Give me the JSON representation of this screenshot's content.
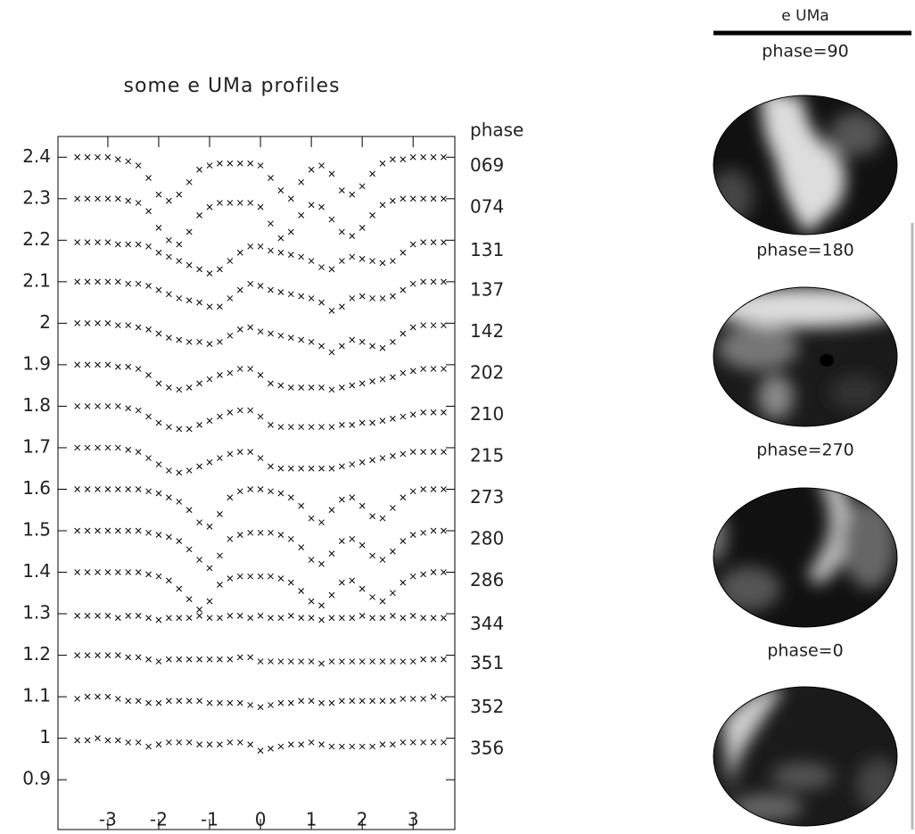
{
  "chart_data": {
    "type": "scatter",
    "title": "some e UMa profiles",
    "legend_title": "phase",
    "color": "#000000",
    "x": [
      -3.6,
      -3.4,
      -3.2,
      -3.0,
      -2.8,
      -2.6,
      -2.4,
      -2.2,
      -2.0,
      -1.8,
      -1.6,
      -1.4,
      -1.2,
      -1.0,
      -0.8,
      -0.6,
      -0.4,
      -0.2,
      0,
      0.2,
      0.4,
      0.6,
      0.8,
      1.0,
      1.2,
      1.4,
      1.6,
      1.8,
      2.0,
      2.2,
      2.4,
      2.6,
      2.8,
      3.0,
      3.2,
      3.4,
      3.6
    ],
    "xlim": [
      -3.98,
      3.82
    ],
    "xticks": [
      -3,
      -2,
      -1,
      0,
      1,
      2,
      3
    ],
    "ylim": [
      0.78,
      2.45
    ],
    "yticks": [
      0.9,
      1,
      1.1,
      1.2,
      1.3,
      1.4,
      1.5,
      1.6,
      1.7,
      1.8,
      1.9,
      2,
      2.1,
      2.2,
      2.3,
      2.4
    ],
    "series": [
      {
        "name": "069",
        "values": [
          2.4,
          2.4,
          2.4,
          2.4,
          2.395,
          2.39,
          2.38,
          2.35,
          2.31,
          2.295,
          2.31,
          2.34,
          2.37,
          2.38,
          2.385,
          2.385,
          2.385,
          2.385,
          2.38,
          2.35,
          2.32,
          2.3,
          2.34,
          2.37,
          2.38,
          2.36,
          2.32,
          2.31,
          2.33,
          2.36,
          2.385,
          2.395,
          2.395,
          2.4,
          2.4,
          2.4,
          2.4
        ]
      },
      {
        "name": "074",
        "values": [
          2.3,
          2.3,
          2.3,
          2.3,
          2.3,
          2.295,
          2.29,
          2.27,
          2.23,
          2.2,
          2.19,
          2.22,
          2.26,
          2.28,
          2.29,
          2.29,
          2.29,
          2.29,
          2.28,
          2.24,
          2.205,
          2.22,
          2.26,
          2.285,
          2.28,
          2.25,
          2.22,
          2.21,
          2.23,
          2.26,
          2.285,
          2.295,
          2.3,
          2.3,
          2.3,
          2.3,
          2.3
        ]
      },
      {
        "name": "131",
        "values": [
          2.195,
          2.195,
          2.195,
          2.195,
          2.19,
          2.19,
          2.19,
          2.185,
          2.17,
          2.16,
          2.15,
          2.14,
          2.13,
          2.12,
          2.13,
          2.15,
          2.17,
          2.185,
          2.185,
          2.175,
          2.17,
          2.165,
          2.16,
          2.15,
          2.135,
          2.13,
          2.15,
          2.16,
          2.155,
          2.15,
          2.145,
          2.15,
          2.17,
          2.19,
          2.195,
          2.195,
          2.195
        ]
      },
      {
        "name": "137",
        "values": [
          2.1,
          2.1,
          2.1,
          2.1,
          2.1,
          2.095,
          2.095,
          2.09,
          2.08,
          2.07,
          2.06,
          2.055,
          2.05,
          2.04,
          2.04,
          2.06,
          2.08,
          2.095,
          2.09,
          2.08,
          2.075,
          2.07,
          2.065,
          2.06,
          2.05,
          2.03,
          2.04,
          2.06,
          2.065,
          2.06,
          2.06,
          2.065,
          2.08,
          2.095,
          2.1,
          2.1,
          2.1
        ]
      },
      {
        "name": "142",
        "values": [
          2.0,
          2.0,
          2.0,
          2.0,
          1.995,
          1.995,
          1.99,
          1.985,
          1.975,
          1.965,
          1.96,
          1.955,
          1.955,
          1.95,
          1.955,
          1.97,
          1.985,
          1.99,
          1.98,
          1.975,
          1.97,
          1.965,
          1.96,
          1.955,
          1.945,
          1.93,
          1.945,
          1.96,
          1.955,
          1.945,
          1.94,
          1.955,
          1.975,
          1.99,
          1.995,
          1.995,
          1.995
        ]
      },
      {
        "name": "202",
        "values": [
          1.9,
          1.9,
          1.9,
          1.9,
          1.895,
          1.895,
          1.89,
          1.875,
          1.855,
          1.845,
          1.84,
          1.845,
          1.855,
          1.865,
          1.875,
          1.88,
          1.89,
          1.89,
          1.875,
          1.855,
          1.85,
          1.845,
          1.845,
          1.845,
          1.845,
          1.84,
          1.845,
          1.85,
          1.855,
          1.86,
          1.865,
          1.87,
          1.88,
          1.885,
          1.89,
          1.89,
          1.89
        ]
      },
      {
        "name": "210",
        "values": [
          1.8,
          1.8,
          1.8,
          1.8,
          1.8,
          1.795,
          1.79,
          1.775,
          1.76,
          1.75,
          1.745,
          1.745,
          1.755,
          1.765,
          1.775,
          1.785,
          1.79,
          1.79,
          1.775,
          1.755,
          1.75,
          1.75,
          1.75,
          1.75,
          1.75,
          1.75,
          1.755,
          1.755,
          1.76,
          1.76,
          1.765,
          1.77,
          1.775,
          1.78,
          1.785,
          1.785,
          1.785
        ]
      },
      {
        "name": "215",
        "values": [
          1.7,
          1.7,
          1.7,
          1.7,
          1.7,
          1.695,
          1.69,
          1.675,
          1.66,
          1.645,
          1.64,
          1.645,
          1.655,
          1.665,
          1.675,
          1.685,
          1.69,
          1.69,
          1.675,
          1.655,
          1.65,
          1.65,
          1.65,
          1.65,
          1.65,
          1.65,
          1.655,
          1.66,
          1.665,
          1.67,
          1.675,
          1.68,
          1.685,
          1.69,
          1.69,
          1.69,
          1.69
        ]
      },
      {
        "name": "273",
        "values": [
          1.6,
          1.6,
          1.6,
          1.6,
          1.6,
          1.6,
          1.6,
          1.595,
          1.59,
          1.58,
          1.57,
          1.55,
          1.52,
          1.51,
          1.54,
          1.58,
          1.595,
          1.6,
          1.6,
          1.595,
          1.59,
          1.58,
          1.56,
          1.53,
          1.52,
          1.55,
          1.575,
          1.58,
          1.56,
          1.535,
          1.53,
          1.555,
          1.58,
          1.595,
          1.6,
          1.6,
          1.6
        ]
      },
      {
        "name": "280",
        "values": [
          1.5,
          1.5,
          1.5,
          1.5,
          1.5,
          1.5,
          1.5,
          1.495,
          1.49,
          1.485,
          1.475,
          1.455,
          1.43,
          1.41,
          1.44,
          1.48,
          1.49,
          1.495,
          1.495,
          1.495,
          1.49,
          1.48,
          1.46,
          1.43,
          1.42,
          1.445,
          1.475,
          1.48,
          1.465,
          1.44,
          1.43,
          1.45,
          1.475,
          1.49,
          1.495,
          1.5,
          1.5
        ]
      },
      {
        "name": "286",
        "values": [
          1.4,
          1.4,
          1.4,
          1.4,
          1.4,
          1.4,
          1.4,
          1.395,
          1.39,
          1.38,
          1.36,
          1.335,
          1.31,
          1.33,
          1.37,
          1.385,
          1.39,
          1.39,
          1.39,
          1.39,
          1.385,
          1.375,
          1.355,
          1.33,
          1.32,
          1.345,
          1.375,
          1.38,
          1.36,
          1.34,
          1.33,
          1.35,
          1.375,
          1.39,
          1.395,
          1.4,
          1.4
        ]
      },
      {
        "name": "344",
        "values": [
          1.295,
          1.295,
          1.295,
          1.295,
          1.29,
          1.295,
          1.295,
          1.29,
          1.285,
          1.29,
          1.29,
          1.29,
          1.295,
          1.29,
          1.29,
          1.295,
          1.295,
          1.29,
          1.295,
          1.29,
          1.29,
          1.295,
          1.29,
          1.29,
          1.285,
          1.29,
          1.29,
          1.29,
          1.295,
          1.29,
          1.29,
          1.295,
          1.29,
          1.295,
          1.29,
          1.29,
          1.29
        ]
      },
      {
        "name": "351",
        "values": [
          1.2,
          1.2,
          1.2,
          1.2,
          1.2,
          1.195,
          1.195,
          1.19,
          1.185,
          1.19,
          1.19,
          1.19,
          1.19,
          1.19,
          1.19,
          1.19,
          1.195,
          1.195,
          1.185,
          1.185,
          1.185,
          1.185,
          1.185,
          1.185,
          1.18,
          1.185,
          1.185,
          1.185,
          1.185,
          1.185,
          1.185,
          1.185,
          1.185,
          1.185,
          1.19,
          1.19,
          1.19
        ]
      },
      {
        "name": "352",
        "values": [
          1.095,
          1.1,
          1.1,
          1.1,
          1.095,
          1.09,
          1.09,
          1.085,
          1.085,
          1.09,
          1.09,
          1.09,
          1.09,
          1.085,
          1.085,
          1.085,
          1.085,
          1.08,
          1.075,
          1.08,
          1.085,
          1.085,
          1.09,
          1.09,
          1.085,
          1.085,
          1.09,
          1.09,
          1.09,
          1.09,
          1.09,
          1.09,
          1.095,
          1.095,
          1.095,
          1.1,
          1.095
        ]
      },
      {
        "name": "356",
        "values": [
          0.995,
          0.995,
          1.0,
          0.995,
          0.995,
          0.99,
          0.99,
          0.98,
          0.985,
          0.99,
          0.99,
          0.99,
          0.985,
          0.985,
          0.985,
          0.99,
          0.99,
          0.985,
          0.97,
          0.975,
          0.98,
          0.985,
          0.985,
          0.99,
          0.985,
          0.98,
          0.98,
          0.98,
          0.98,
          0.98,
          0.985,
          0.985,
          0.99,
          0.99,
          0.99,
          0.99,
          0.99
        ]
      }
    ]
  },
  "maps": {
    "title": "e UMa",
    "labels": [
      "phase=90",
      "phase=180",
      "phase=270",
      "phase=0"
    ]
  }
}
